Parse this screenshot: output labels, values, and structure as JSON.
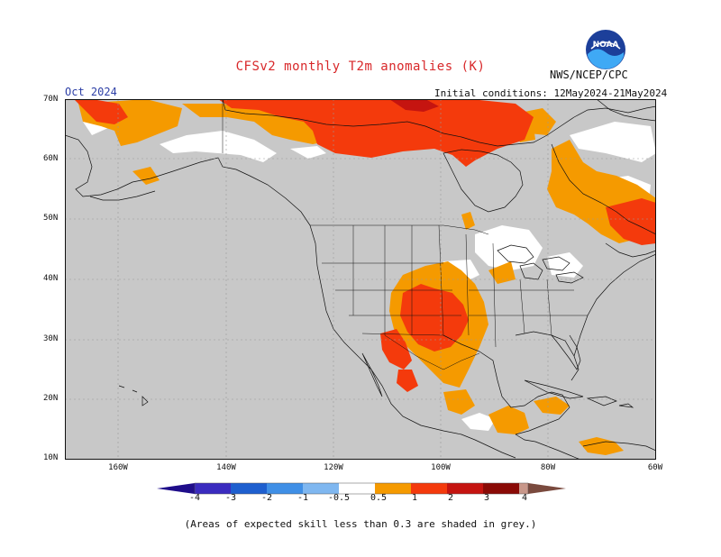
{
  "header": {
    "title": "CFSv2 monthly T2m anomalies (K)",
    "agency": "NWS/NCEP/CPC",
    "month": "Oct 2024",
    "initial_conditions": "Initial conditions: 12May2024-21May2024",
    "logo_text": "NOAA"
  },
  "axes": {
    "lat_labels": [
      "70N",
      "60N",
      "50N",
      "40N",
      "30N",
      "20N",
      "10N"
    ],
    "lon_labels": [
      "160W",
      "140W",
      "120W",
      "100W",
      "80W",
      "60W"
    ]
  },
  "colorbar": {
    "ticks": [
      "-4",
      "-3",
      "-2",
      "-1",
      "-0.5",
      "0.5",
      "1",
      "2",
      "3",
      "4"
    ],
    "colors": [
      "#1f0d8a",
      "#3a2bbf",
      "#1e5fcf",
      "#3f8fe6",
      "#7fb7f0",
      "#ffffff",
      "#f59a00",
      "#f43a0c",
      "#c51410",
      "#8a0a06",
      "#c8978a",
      "#7a4a3e"
    ]
  },
  "map_colors": {
    "skill_grey": "#c8c8c8",
    "neutral": "#ffffff",
    "warm_05_1": "#f59a00",
    "warm_1_2": "#f43a0c",
    "warm_2_3": "#c51410"
  },
  "footnote": "(Areas of expected skill less than 0.3 are shaded in grey.)"
}
